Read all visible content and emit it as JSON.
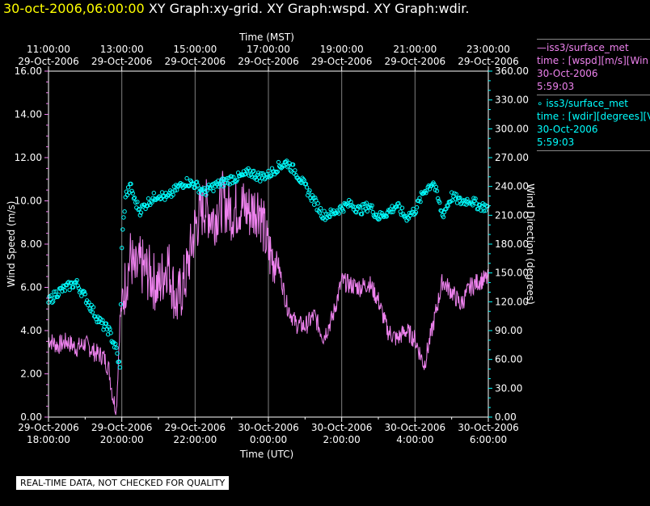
{
  "header": {
    "timestamp": "30-oct-2006,06:00:00",
    "graphs": "XY Graph:xy-grid.  XY Graph:wspd.  XY Graph:wdir."
  },
  "legend": {
    "speed": {
      "line1": "—iss3/surface_met",
      "line2": "time : [wspd][m/s][Win",
      "line3": "30-Oct-2006",
      "line4": "5:59:03"
    },
    "dir": {
      "line1": "∘ iss3/surface_met",
      "line2": "time : [wdir][degrees][V",
      "line3": "30-Oct-2006",
      "line4": "5:59:03"
    }
  },
  "quality_note": "REAL-TIME DATA, NOT CHECKED FOR QUALITY",
  "colors": {
    "speed": "#ee82ee",
    "direction": "#00ffff",
    "grid": "#808080",
    "axis": "#ffffff"
  },
  "chart_data": {
    "type": "line",
    "x_axis_bottom": {
      "label": "Time (UTC)",
      "ticks": [
        {
          "date": "29-Oct-2006",
          "time": "18:00:00",
          "h": 0
        },
        {
          "date": "29-Oct-2006",
          "time": "20:00:00",
          "h": 2
        },
        {
          "date": "29-Oct-2006",
          "time": "22:00:00",
          "h": 4
        },
        {
          "date": "30-Oct-2006",
          "time": "0:00:00",
          "h": 6
        },
        {
          "date": "30-Oct-2006",
          "time": "2:00:00",
          "h": 8
        },
        {
          "date": "30-Oct-2006",
          "time": "4:00:00",
          "h": 10
        },
        {
          "date": "30-Oct-2006",
          "time": "6:00:00",
          "h": 12
        }
      ]
    },
    "x_axis_top": {
      "label": "Time (MST)",
      "ticks": [
        {
          "time": "11:00:00",
          "date": "29-Oct-2006",
          "h": 0
        },
        {
          "time": "13:00:00",
          "date": "29-Oct-2006",
          "h": 2
        },
        {
          "time": "15:00:00",
          "date": "29-Oct-2006",
          "h": 4
        },
        {
          "time": "17:00:00",
          "date": "29-Oct-2006",
          "h": 6
        },
        {
          "time": "19:00:00",
          "date": "29-Oct-2006",
          "h": 8
        },
        {
          "time": "21:00:00",
          "date": "29-Oct-2006",
          "h": 10
        },
        {
          "time": "23:00:00",
          "date": "29-Oct-2006",
          "h": 12
        }
      ]
    },
    "x_range": [
      0,
      12
    ],
    "y_left": {
      "label": "Wind Speed (m/s)",
      "range": [
        0,
        16
      ],
      "ticks": [
        "0.00",
        "2.00",
        "4.00",
        "6.00",
        "8.00",
        "10.00",
        "12.00",
        "14.00",
        "16.00"
      ]
    },
    "y_right": {
      "label": "Wind Direction (degrees)",
      "range": [
        0,
        360
      ],
      "ticks": [
        "0.00",
        "30.00",
        "60.00",
        "90.00",
        "120.00",
        "150.00",
        "180.00",
        "210.00",
        "240.00",
        "270.00",
        "300.00",
        "330.00",
        "360.00"
      ]
    },
    "grid": true,
    "series": [
      {
        "name": "iss3/surface_met wspd",
        "style": "line",
        "axis": "left",
        "x": [
          0,
          0.25,
          0.5,
          0.75,
          1,
          1.25,
          1.5,
          1.65,
          1.75,
          1.85,
          1.95,
          2,
          2.1,
          2.25,
          2.35,
          2.5,
          2.75,
          3,
          3.25,
          3.5,
          3.75,
          4,
          4.25,
          4.5,
          4.75,
          5,
          5.25,
          5.5,
          5.75,
          6,
          6.25,
          6.5,
          6.75,
          7,
          7.25,
          7.5,
          7.75,
          8,
          8.25,
          8.5,
          8.75,
          9,
          9.25,
          9.5,
          9.75,
          10,
          10.25,
          10.5,
          10.75,
          11,
          11.25,
          11.5,
          11.75,
          12
        ],
        "y": [
          3.6,
          3.3,
          3.5,
          3.2,
          3.4,
          3.0,
          2.8,
          2.2,
          1.0,
          0.3,
          4.5,
          5.2,
          6.2,
          7.5,
          6.5,
          7.0,
          6.6,
          6.0,
          7.2,
          5.2,
          6.5,
          8.8,
          9.8,
          9.2,
          10.0,
          9.5,
          9.8,
          9.5,
          9.8,
          7.6,
          7.2,
          5.2,
          4.3,
          4.2,
          4.7,
          3.7,
          4.6,
          6.3,
          6.1,
          6.0,
          6.2,
          5.4,
          4.0,
          3.6,
          4.0,
          3.6,
          2.4,
          4.3,
          6.3,
          5.8,
          5.2,
          6.0,
          6.3,
          6.4
        ]
      },
      {
        "name": "iss3/surface_met wdir",
        "style": "markers",
        "axis": "right",
        "x": [
          0,
          0.25,
          0.5,
          0.75,
          1,
          1.15,
          1.3,
          1.5,
          1.65,
          1.75,
          1.85,
          1.95,
          2,
          2.1,
          2.25,
          2.35,
          2.5,
          2.75,
          3,
          3.25,
          3.5,
          3.75,
          4,
          4.25,
          4.5,
          4.75,
          5,
          5.25,
          5.5,
          5.75,
          6,
          6.25,
          6.5,
          6.75,
          7,
          7.25,
          7.5,
          7.75,
          8,
          8.25,
          8.5,
          8.75,
          9,
          9.25,
          9.5,
          9.75,
          10,
          10.25,
          10.5,
          10.75,
          11,
          11.25,
          11.5,
          11.75,
          12
        ],
        "y": [
          120,
          130,
          135,
          140,
          125,
          115,
          105,
          95,
          90,
          80,
          70,
          50,
          180,
          230,
          240,
          225,
          215,
          225,
          232,
          228,
          238,
          245,
          242,
          234,
          240,
          244,
          248,
          250,
          255,
          250,
          252,
          260,
          265,
          255,
          240,
          225,
          210,
          212,
          218,
          222,
          215,
          220,
          208,
          213,
          220,
          208,
          215,
          235,
          245,
          210,
          230,
          224,
          226,
          220,
          218
        ]
      }
    ]
  }
}
